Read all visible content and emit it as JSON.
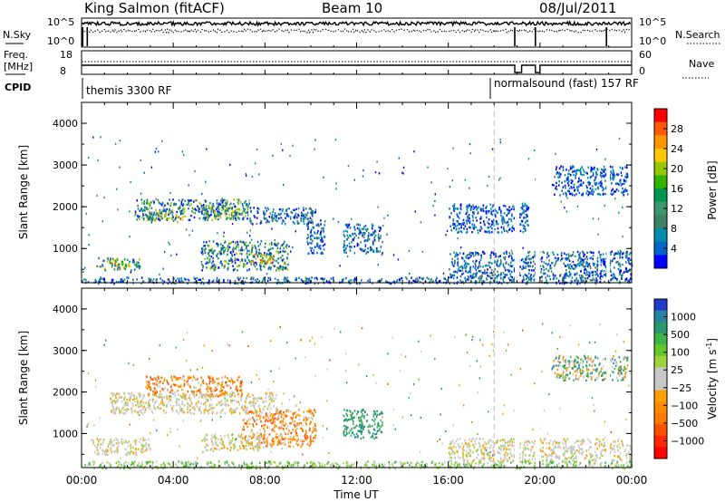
{
  "header": {
    "station": "King Salmon (fitACF)",
    "beam": "Beam 10",
    "date": "08/Jul/2011"
  },
  "summary_panel": {
    "nsky_label": "N.Sky",
    "nsky_ticks": [
      "10^5",
      "10^0"
    ],
    "nsearch_label": "N.Search",
    "nsearch_ticks": [
      "10^5",
      "10^0"
    ],
    "freq_label": "Freq.",
    "freq_unit": "[MHz]",
    "freq_ticks": [
      "18",
      "8"
    ],
    "nave_label": "Nave",
    "nave_ticks": [
      "60",
      "0"
    ],
    "cpid_label": "CPID",
    "cpid_segments": [
      {
        "label": "themis 3300 RF",
        "start": "00:00"
      },
      {
        "label": "normalsound (fast) 157 RF",
        "start": "18:00"
      }
    ]
  },
  "power_legend": {
    "label": "Power [dB]",
    "ticks": [
      "28",
      "24",
      "20",
      "16",
      "12",
      "8",
      "4"
    ],
    "colors": [
      "#ff0000",
      "#ff5a00",
      "#ff9600",
      "#ffc800",
      "#96c800",
      "#32b400",
      "#009650",
      "#3c966e",
      "#3c8264",
      "#008caa",
      "#0064c8",
      "#0000ff"
    ]
  },
  "velocity_legend": {
    "label": "Velocity [m s",
    "label_sup": "-1",
    "label_end": "]",
    "ticks": [
      "1000",
      "500",
      "100",
      "25",
      "−25",
      "−100",
      "−500",
      "−1000"
    ],
    "colors": [
      "#1e3cc8",
      "#2882a0",
      "#28966e",
      "#3cb446",
      "#64c828",
      "#a0d23c",
      "#c8c8c8",
      "#c8c8c8",
      "#ffa000",
      "#ff8c00",
      "#ff7800",
      "#ff5000",
      "#ff2800",
      "#ff0000"
    ]
  },
  "chart_data": {
    "type": "heatmap",
    "xlabel": "Time UT",
    "x_ticks": [
      "00:00",
      "04:00",
      "08:00",
      "12:00",
      "16:00",
      "20:00",
      "00:00"
    ],
    "x_range_hours": [
      0,
      24
    ],
    "ylabel": "Slant Range [km]",
    "y_ticks": [
      1000,
      2000,
      3000,
      4000
    ],
    "y_range_km": [
      180,
      4500
    ],
    "marker_time_hours": 18,
    "panels": [
      {
        "name": "power",
        "clusters": [
          {
            "t0": 2.3,
            "t1": 7.3,
            "r0": 1700,
            "r1": 2200,
            "level": 2
          },
          {
            "t0": 2.8,
            "t1": 4.5,
            "r0": 1650,
            "r1": 1950,
            "level": 3
          },
          {
            "t0": 5.2,
            "t1": 6.6,
            "r0": 1750,
            "r1": 2050,
            "level": 3
          },
          {
            "t0": 7.3,
            "t1": 10.2,
            "r0": 1600,
            "r1": 2000,
            "level": 1
          },
          {
            "t0": 5.2,
            "t1": 9.0,
            "r0": 500,
            "r1": 1200,
            "level": 2
          },
          {
            "t0": 7.4,
            "t1": 8.4,
            "r0": 650,
            "r1": 900,
            "level": 4
          },
          {
            "t0": 0.7,
            "t1": 2.5,
            "r0": 500,
            "r1": 800,
            "level": 3
          },
          {
            "t0": 1.3,
            "t1": 2.1,
            "r0": 550,
            "r1": 700,
            "level": 4
          },
          {
            "t0": 9.8,
            "t1": 10.6,
            "r0": 900,
            "r1": 1700,
            "level": 1
          },
          {
            "t0": 11.4,
            "t1": 13.1,
            "r0": 900,
            "r1": 1600,
            "level": 1
          },
          {
            "t0": 16.0,
            "t1": 24.0,
            "r0": 300,
            "r1": 950,
            "level": 1
          },
          {
            "t0": 0.0,
            "t1": 24.0,
            "r0": 180,
            "r1": 330,
            "level": 1
          },
          {
            "t0": 20.5,
            "t1": 23.8,
            "r0": 2300,
            "r1": 3000,
            "level": 0
          },
          {
            "t0": 16.0,
            "t1": 19.5,
            "r0": 1400,
            "r1": 2100,
            "level": 0
          }
        ]
      },
      {
        "name": "velocity",
        "clusters": [
          {
            "t0": 2.8,
            "t1": 7.0,
            "r0": 1900,
            "r1": 2400,
            "level": "neg"
          },
          {
            "t0": 1.2,
            "t1": 8.5,
            "r0": 1500,
            "r1": 2000,
            "level": "gray"
          },
          {
            "t0": 7.0,
            "t1": 10.2,
            "r0": 700,
            "r1": 1600,
            "level": "neg"
          },
          {
            "t0": 5.2,
            "t1": 8.0,
            "r0": 600,
            "r1": 1000,
            "level": "gray"
          },
          {
            "t0": 0.4,
            "t1": 3.0,
            "r0": 500,
            "r1": 900,
            "level": "gray"
          },
          {
            "t0": 11.4,
            "t1": 13.1,
            "r0": 900,
            "r1": 1600,
            "level": "pos"
          },
          {
            "t0": 16.0,
            "t1": 24.0,
            "r0": 350,
            "r1": 900,
            "level": "gray"
          },
          {
            "t0": 0.0,
            "t1": 24.0,
            "r0": 180,
            "r1": 350,
            "level": "lowpos"
          },
          {
            "t0": 20.5,
            "t1": 23.8,
            "r0": 2300,
            "r1": 2900,
            "level": "mix"
          }
        ]
      }
    ]
  }
}
